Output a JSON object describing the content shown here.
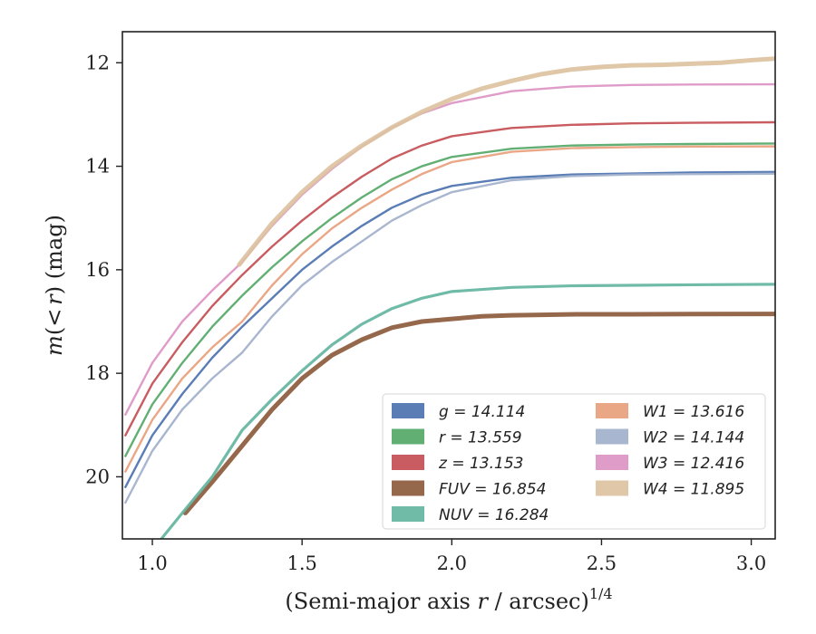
{
  "chart_data": {
    "type": "line",
    "title": "",
    "xlabel": "(Semi-major axis r / arcsec)",
    "xlabel_parts": {
      "pre": "(Semi-major axis ",
      "var": "r",
      "post": " / arcsec)",
      "sup": "1/4"
    },
    "ylabel": "m(< r) (mag)",
    "ylabel_parts": {
      "var": "m",
      "mid": "(<",
      "var2": "r",
      "post": ") (mag)"
    },
    "xlim": [
      0.9,
      3.08
    ],
    "ylim": [
      21.2,
      11.4
    ],
    "y_inverted": true,
    "xticks": [
      1.0,
      1.5,
      2.0,
      2.5,
      3.0
    ],
    "xtick_labels": [
      "1.0",
      "1.5",
      "2.0",
      "2.5",
      "3.0"
    ],
    "yticks": [
      12,
      14,
      16,
      18,
      20
    ],
    "ytick_labels": [
      "12",
      "14",
      "16",
      "18",
      "20"
    ],
    "grid": false,
    "legend_placement": "lower-right",
    "legend_columns": 2,
    "series": [
      {
        "name": "g = 14.114",
        "legend_var": "g",
        "legend_val": "= 14.114",
        "color": "#4c72b0",
        "x": [
          0.91,
          1.0,
          1.1,
          1.2,
          1.3,
          1.4,
          1.5,
          1.6,
          1.7,
          1.8,
          1.9,
          2.0,
          2.2,
          2.4,
          2.6,
          2.8,
          3.08
        ],
        "y": [
          20.2,
          19.2,
          18.4,
          17.7,
          17.1,
          16.55,
          16.0,
          15.55,
          15.15,
          14.8,
          14.55,
          14.38,
          14.22,
          14.16,
          14.14,
          14.12,
          14.11
        ]
      },
      {
        "name": "r = 13.559",
        "legend_var": "r",
        "legend_val": "= 13.559",
        "color": "#55a868",
        "x": [
          0.91,
          1.0,
          1.1,
          1.2,
          1.3,
          1.4,
          1.5,
          1.6,
          1.7,
          1.8,
          1.9,
          2.0,
          2.2,
          2.4,
          2.6,
          2.8,
          3.08
        ],
        "y": [
          19.6,
          18.6,
          17.8,
          17.1,
          16.5,
          15.95,
          15.45,
          15.0,
          14.6,
          14.25,
          14.0,
          13.82,
          13.66,
          13.6,
          13.58,
          13.57,
          13.56
        ]
      },
      {
        "name": "z = 13.153",
        "legend_var": "z",
        "legend_val": "= 13.153",
        "color": "#c44e52",
        "x": [
          0.91,
          1.0,
          1.1,
          1.2,
          1.3,
          1.4,
          1.5,
          1.6,
          1.7,
          1.8,
          1.9,
          2.0,
          2.2,
          2.4,
          2.6,
          2.8,
          3.08
        ],
        "y": [
          19.2,
          18.2,
          17.4,
          16.7,
          16.1,
          15.55,
          15.05,
          14.6,
          14.2,
          13.85,
          13.6,
          13.42,
          13.26,
          13.2,
          13.17,
          13.16,
          13.15
        ]
      },
      {
        "name": "FUV = 16.854",
        "legend_var": "FUV",
        "legend_val": "= 16.854",
        "color": "#8c5a3c",
        "x": [
          1.11,
          1.2,
          1.3,
          1.4,
          1.5,
          1.6,
          1.7,
          1.8,
          1.9,
          2.0,
          2.1,
          2.2,
          2.3,
          2.42,
          2.6,
          2.8,
          3.08
        ],
        "y": [
          20.7,
          20.1,
          19.4,
          18.7,
          18.1,
          17.65,
          17.35,
          17.12,
          17.0,
          16.95,
          16.9,
          16.88,
          16.87,
          16.86,
          16.86,
          16.855,
          16.854
        ]
      },
      {
        "name": "NUV = 16.284",
        "legend_var": "NUV",
        "legend_val": "= 16.284",
        "color": "#64b5a0",
        "x": [
          1.03,
          1.1,
          1.2,
          1.3,
          1.4,
          1.5,
          1.6,
          1.7,
          1.8,
          1.9,
          2.0,
          2.2,
          2.4,
          2.6,
          2.8,
          3.08
        ],
        "y": [
          21.2,
          20.7,
          20.0,
          19.1,
          18.5,
          17.95,
          17.45,
          17.05,
          16.75,
          16.55,
          16.42,
          16.34,
          16.31,
          16.3,
          16.29,
          16.28
        ]
      },
      {
        "name": "W1 = 13.616",
        "legend_var": "W1",
        "legend_val": "= 13.616",
        "color": "#e8a07c",
        "x": [
          0.91,
          1.0,
          1.1,
          1.2,
          1.3,
          1.4,
          1.5,
          1.6,
          1.7,
          1.8,
          1.9,
          2.0,
          2.2,
          2.4,
          2.6,
          2.8,
          3.08
        ],
        "y": [
          19.9,
          18.9,
          18.1,
          17.5,
          17.0,
          16.3,
          15.7,
          15.2,
          14.8,
          14.45,
          14.15,
          13.92,
          13.72,
          13.65,
          13.63,
          13.62,
          13.616
        ]
      },
      {
        "name": "W2 = 14.144",
        "legend_var": "W2",
        "legend_val": "= 14.144",
        "color": "#a2b0cc",
        "x": [
          0.91,
          1.0,
          1.1,
          1.2,
          1.3,
          1.4,
          1.5,
          1.6,
          1.7,
          1.8,
          1.9,
          2.0,
          2.2,
          2.4,
          2.6,
          2.8,
          3.08
        ],
        "y": [
          20.5,
          19.5,
          18.7,
          18.1,
          17.6,
          16.9,
          16.3,
          15.85,
          15.45,
          15.05,
          14.75,
          14.5,
          14.27,
          14.19,
          14.16,
          14.15,
          14.144
        ]
      },
      {
        "name": "W3 = 12.416",
        "legend_var": "W3",
        "legend_val": "= 12.416",
        "color": "#dd94c4",
        "x": [
          0.91,
          1.0,
          1.1,
          1.2,
          1.3,
          1.4,
          1.5,
          1.6,
          1.7,
          1.8,
          1.9,
          2.0,
          2.2,
          2.4,
          2.6,
          2.8,
          3.08
        ],
        "y": [
          18.8,
          17.8,
          17.0,
          16.4,
          15.85,
          15.15,
          14.55,
          14.05,
          13.62,
          13.25,
          12.98,
          12.78,
          12.55,
          12.46,
          12.43,
          12.42,
          12.416
        ]
      },
      {
        "name": "W4 = 11.895",
        "legend_var": "W4",
        "legend_val": "= 11.895",
        "color": "#dcc2a0",
        "x": [
          1.29,
          1.4,
          1.5,
          1.6,
          1.7,
          1.8,
          1.9,
          2.0,
          2.1,
          2.2,
          2.3,
          2.4,
          2.5,
          2.6,
          2.7,
          2.8,
          2.9,
          3.0,
          3.08
        ],
        "y": [
          15.9,
          15.1,
          14.5,
          14.0,
          13.6,
          13.25,
          12.95,
          12.7,
          12.5,
          12.35,
          12.22,
          12.13,
          12.08,
          12.05,
          12.04,
          12.02,
          12.0,
          11.95,
          11.92
        ]
      }
    ]
  }
}
